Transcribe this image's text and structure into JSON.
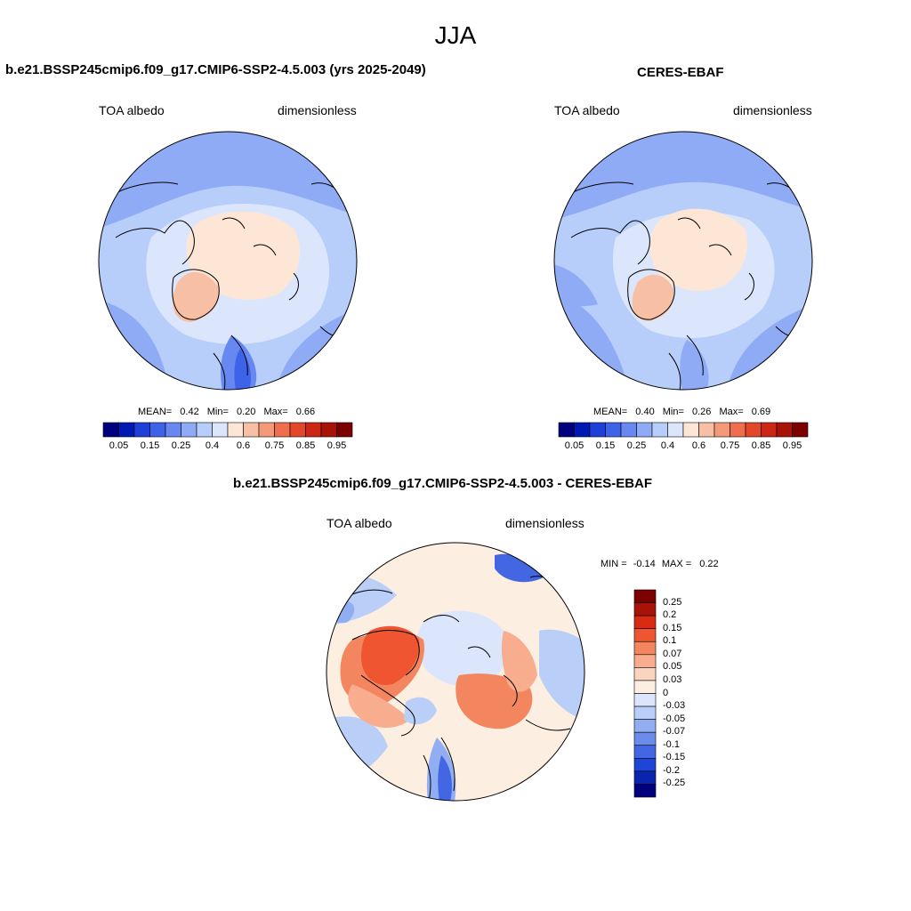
{
  "season": "JJA",
  "colors": {
    "seq_scale": [
      "#00007f",
      "#0019b3",
      "#1f3fd9",
      "#3f63e8",
      "#6688f0",
      "#8fabf5",
      "#b7cdfa",
      "#dbe6fc",
      "#fde6d6",
      "#f7c0a5",
      "#f49a7b",
      "#ee6e4d",
      "#e4462b",
      "#cc2614",
      "#a81308",
      "#7d0000"
    ],
    "diff_scale": [
      "#7d0000",
      "#a81308",
      "#d92b12",
      "#ee5530",
      "#f4865f",
      "#f7ad8e",
      "#fbd4c0",
      "#fdeee2",
      "#dbe6fc",
      "#b9cff8",
      "#92aef2",
      "#6b8ceb",
      "#4367e3",
      "#1f44d8",
      "#0b24b0",
      "#00007f"
    ],
    "outline": "#000000"
  },
  "panels": [
    {
      "id": "model",
      "title": "b.e21.BSSP245cmip6.f09_g17.CMIP6-SSP2-4.5.003 (yrs 2025-2049)",
      "left_label": "TOA albedo",
      "right_label": "dimensionless",
      "stats": {
        "mean_label": "MEAN=",
        "mean": "0.42",
        "min_label": "Min=",
        "min": "0.20",
        "max_label": "Max=",
        "max": "0.66"
      },
      "colorbar_ticks": [
        "0.05",
        "0.15",
        "0.25",
        "0.4",
        "0.6",
        "0.75",
        "0.85",
        "0.95"
      ]
    },
    {
      "id": "obs",
      "title": "CERES-EBAF",
      "left_label": "TOA albedo",
      "right_label": "dimensionless",
      "stats": {
        "mean_label": "MEAN=",
        "mean": "0.40",
        "min_label": "Min=",
        "min": "0.26",
        "max_label": "Max=",
        "max": "0.69"
      },
      "colorbar_ticks": [
        "0.05",
        "0.15",
        "0.25",
        "0.4",
        "0.6",
        "0.75",
        "0.85",
        "0.95"
      ]
    },
    {
      "id": "diff",
      "title": "b.e21.BSSP245cmip6.f09_g17.CMIP6-SSP2-4.5.003 - CERES-EBAF",
      "left_label": "TOA albedo",
      "right_label": "dimensionless",
      "stats": {
        "min_label": "MIN =",
        "min": "-0.14",
        "max_label": "MAX =",
        "max": "0.22"
      },
      "colorbar_ticks": [
        "0.25",
        "0.2",
        "0.15",
        "0.1",
        "0.07",
        "0.05",
        "0.03",
        "0",
        "-0.03",
        "-0.05",
        "-0.07",
        "-0.1",
        "-0.15",
        "-0.2",
        "-0.25"
      ]
    }
  ]
}
